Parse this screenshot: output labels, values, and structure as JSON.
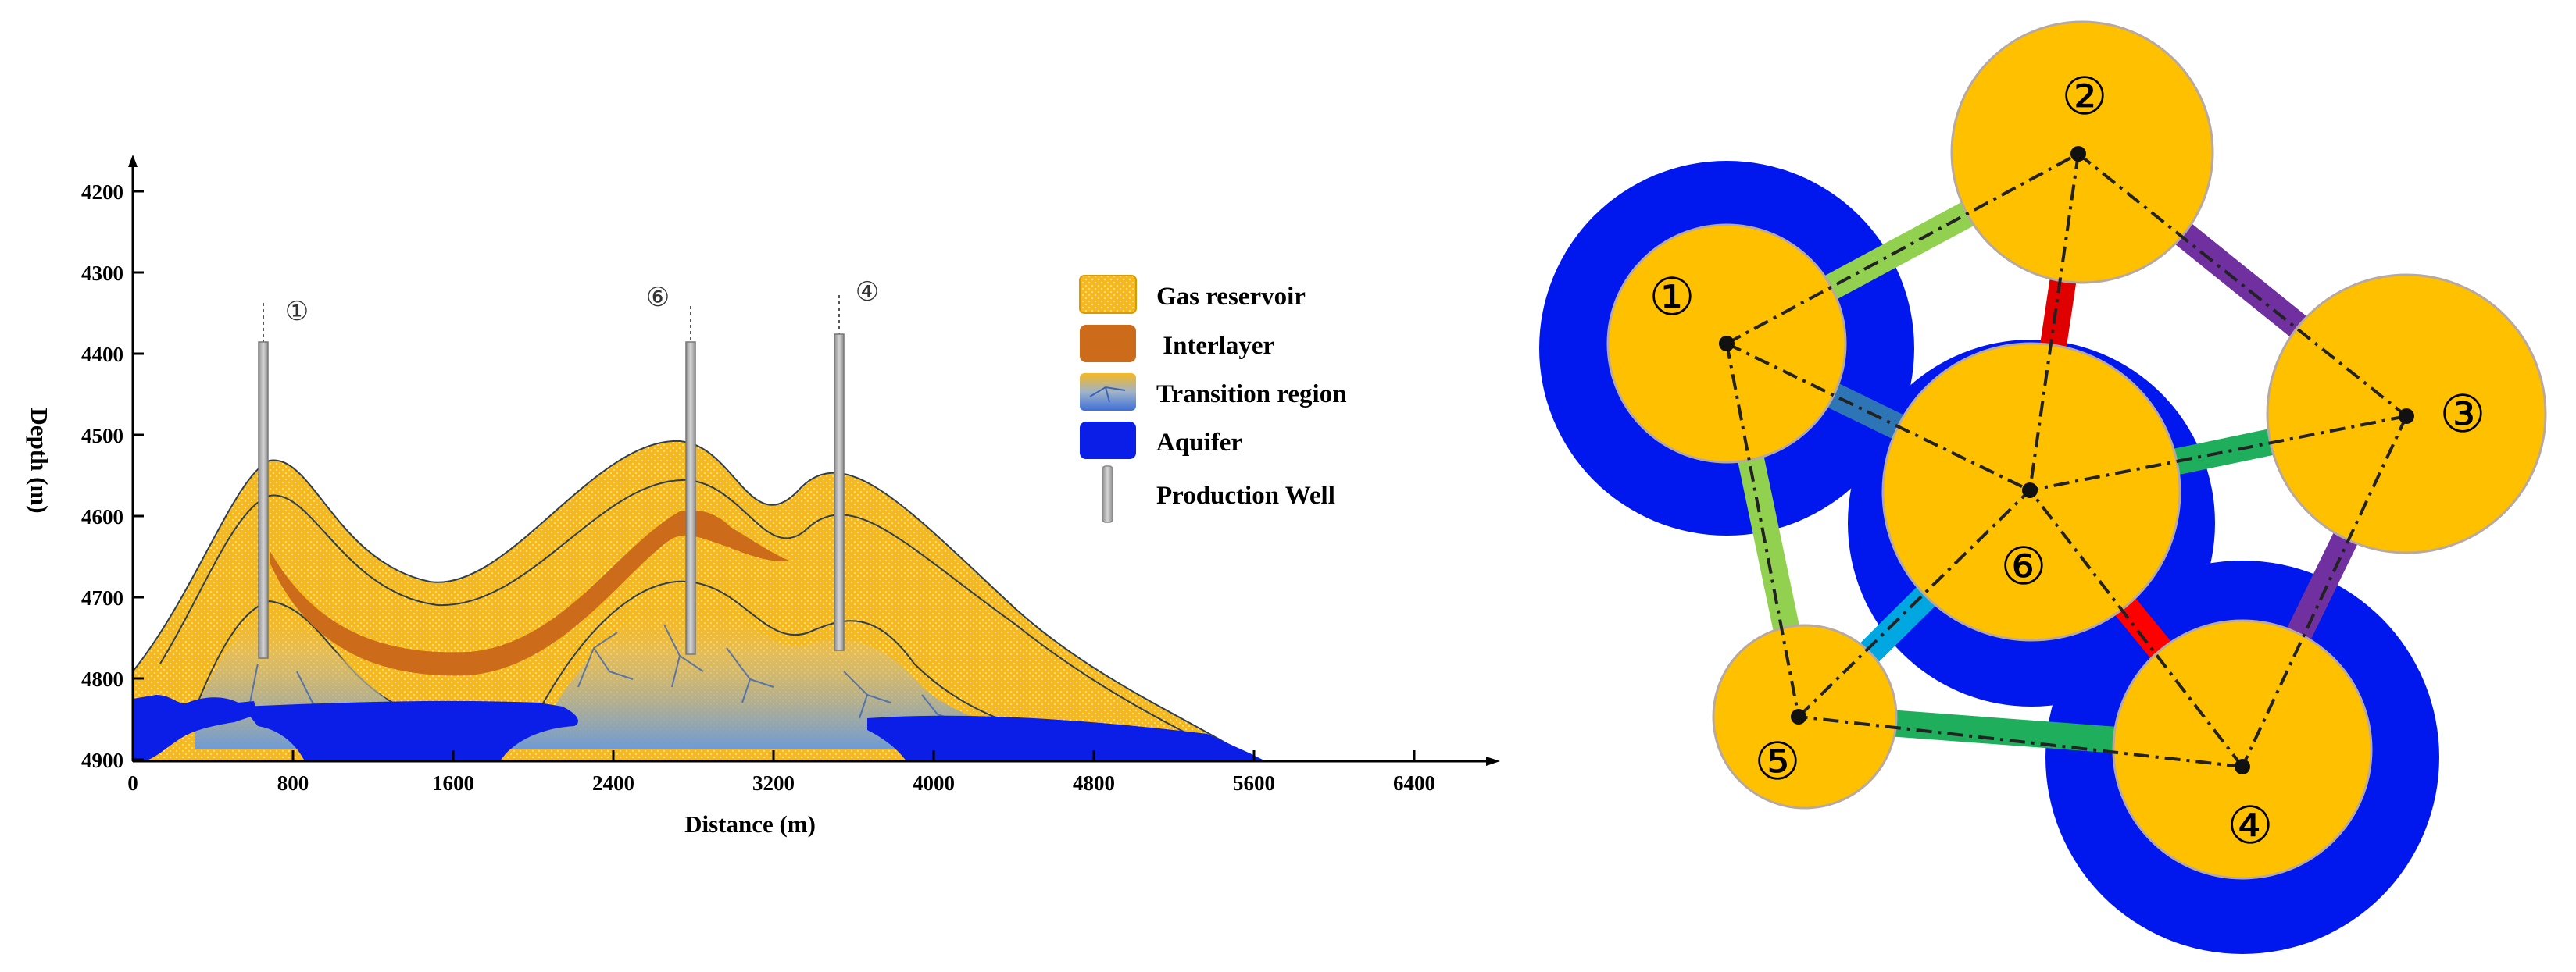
{
  "cross_section": {
    "y_axis": {
      "title": "Depth (m)",
      "ticks": [
        "4200",
        "4300",
        "4400",
        "4500",
        "4600",
        "4700",
        "4800",
        "4900"
      ]
    },
    "x_axis": {
      "title": "Distance (m)",
      "ticks": [
        "0",
        "800",
        "1600",
        "2400",
        "3200",
        "4000",
        "4800",
        "5600",
        "6400"
      ]
    },
    "wells": [
      {
        "label": "①",
        "distance_m": 680
      },
      {
        "label": "⑥",
        "distance_m": 2790
      },
      {
        "label": "④",
        "distance_m": 3550
      }
    ],
    "legend": [
      {
        "label": "Gas reservoir",
        "color": "#f7b81e"
      },
      {
        "label": " Interlayer",
        "color": "#cc6c1a"
      },
      {
        "label": "Transition region",
        "color": "#7fa6cf"
      },
      {
        "label": "Aquifer",
        "color": "#0a1ee8"
      },
      {
        "label": "Production Well",
        "color": "#a8a8a8"
      }
    ]
  },
  "network": {
    "nodes": [
      {
        "label": "①",
        "aquifer": true
      },
      {
        "label": "②",
        "aquifer": false
      },
      {
        "label": "③",
        "aquifer": false
      },
      {
        "label": "④",
        "aquifer": true
      },
      {
        "label": "⑤",
        "aquifer": false
      },
      {
        "label": "⑥",
        "aquifer": true
      }
    ],
    "connections": [
      {
        "from": "①",
        "to": "②",
        "color": "#92d050"
      },
      {
        "from": "①",
        "to": "⑤",
        "color": "#92d050"
      },
      {
        "from": "①",
        "to": "⑥",
        "color": "#2e75b6"
      },
      {
        "from": "②",
        "to": "③",
        "color": "#7030a0"
      },
      {
        "from": "②",
        "to": "⑥",
        "color": "#e00000"
      },
      {
        "from": "③",
        "to": "④",
        "color": "#7030a0"
      },
      {
        "from": "③",
        "to": "⑥",
        "color": "#1fae5c"
      },
      {
        "from": "④",
        "to": "⑤",
        "color": "#1fae5c"
      },
      {
        "from": "④",
        "to": "⑥",
        "color": "#ff0000"
      },
      {
        "from": "⑤",
        "to": "⑥",
        "color": "#00a7e0"
      }
    ],
    "colors": {
      "gas": "#ffc000",
      "aquifer": "#0018ee",
      "node_border": "#b7a9a0"
    }
  }
}
